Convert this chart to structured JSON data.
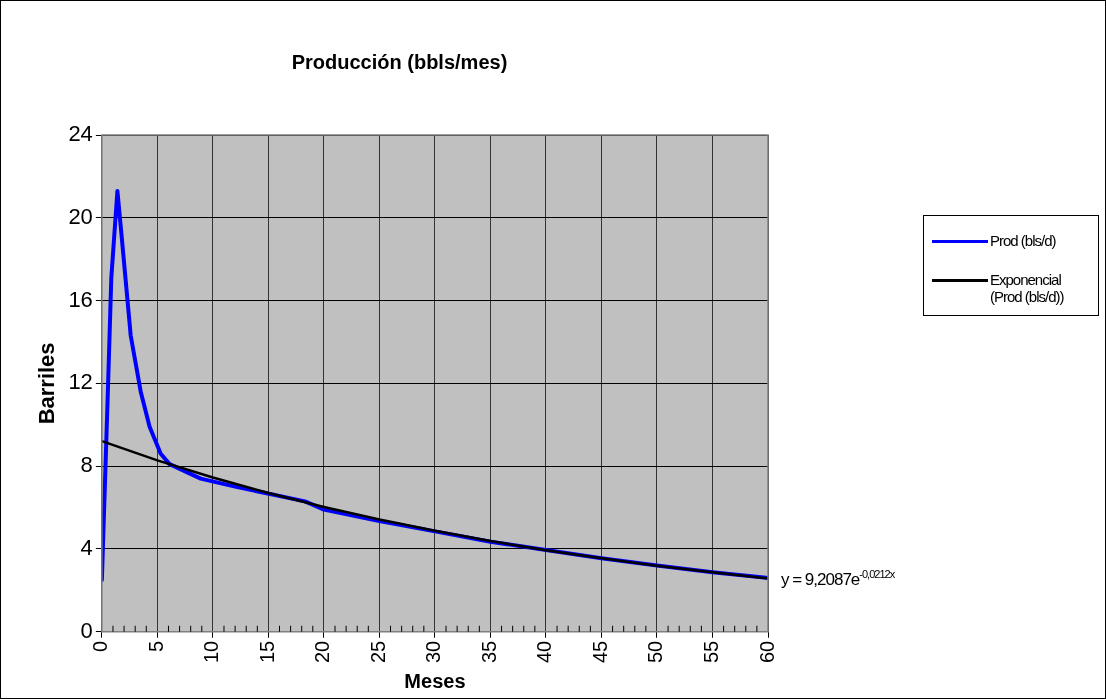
{
  "chart_data": {
    "type": "line",
    "title": "Producción (bbls/mes)",
    "xlabel": "Meses",
    "ylabel": "Barriles",
    "xlim": [
      0,
      60
    ],
    "xticks": [
      0,
      5,
      10,
      15,
      20,
      25,
      30,
      35,
      40,
      45,
      50,
      55,
      60
    ],
    "ylim": [
      0,
      24
    ],
    "yticks": [
      0,
      4,
      8,
      12,
      16,
      20,
      24
    ],
    "grid": true,
    "legend": "right",
    "marker": "none",
    "line_style": "solid",
    "annotations": [
      "y = 9,2087e$^{-0,0212x}$"
    ],
    "series": [
      {
        "name": "Prod (bls/d)",
        "color": "#0000ff",
        "x": [
          0,
          0.54,
          0.85,
          1.4,
          1.8,
          2.6,
          3.5,
          4.3,
          5.3,
          6.1,
          8.9,
          12.1,
          18.3,
          20,
          25,
          30,
          35,
          40,
          45,
          50,
          55,
          60
        ],
        "values": [
          2.5,
          11.6,
          17.1,
          21.3,
          19.0,
          14.3,
          11.6,
          9.9,
          8.6,
          8.1,
          7.4,
          7.0,
          6.3,
          5.9,
          5.35,
          4.85,
          4.35,
          3.95,
          3.55,
          3.2,
          2.88,
          2.6
        ]
      },
      {
        "name": "Exponencial (Prod (bls/d))",
        "color": "#000000",
        "type": "line",
        "x": [
          0,
          5,
          10,
          15,
          20,
          25,
          30,
          35,
          40,
          45,
          50,
          55,
          60
        ],
        "values": [
          9.21,
          8.28,
          7.45,
          6.7,
          6.03,
          5.42,
          4.88,
          4.38,
          3.94,
          3.55,
          3.19,
          2.87,
          2.58
        ]
      }
    ]
  }
}
